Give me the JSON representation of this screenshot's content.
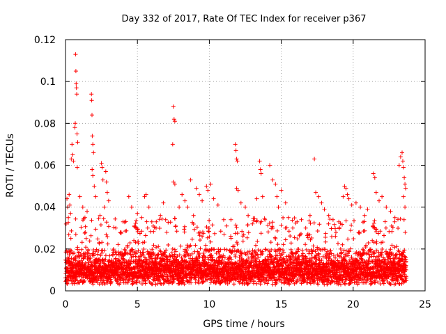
{
  "chart_data": {
    "type": "scatter",
    "title": "Day 332 of 2017, Rate Of TEC Index for receiver p367",
    "xlabel": "GPS time / hours",
    "ylabel": "ROTI / TECUs",
    "xlim": [
      0,
      25
    ],
    "ylim": [
      0,
      0.12
    ],
    "x_ticks": [
      0,
      5,
      10,
      15,
      20,
      25
    ],
    "y_ticks": [
      0,
      0.02,
      0.04,
      0.06,
      0.08,
      0.1,
      0.12
    ],
    "x_tick_labels": [
      "0",
      "5",
      "10",
      "15",
      "20",
      "25"
    ],
    "y_tick_labels": [
      "0",
      "0.02",
      "0.04",
      "0.06",
      "0.08",
      "0.1",
      "0.12"
    ],
    "grid": true,
    "marker": "+",
    "color": "#ff0000",
    "background_band": {
      "x_range": [
        0,
        23.7
      ],
      "floor_range": [
        0.003,
        0.008
      ],
      "typical_range": [
        0.005,
        0.02
      ],
      "note": "dense continuous band of + markers across the full day"
    },
    "points": [
      [
        0.1,
        0.044
      ],
      [
        0.15,
        0.04
      ],
      [
        0.2,
        0.035
      ],
      [
        0.25,
        0.046
      ],
      [
        0.3,
        0.041
      ],
      [
        0.35,
        0.037
      ],
      [
        0.4,
        0.063
      ],
      [
        0.45,
        0.07
      ],
      [
        0.5,
        0.065
      ],
      [
        0.55,
        0.062
      ],
      [
        0.65,
        0.078
      ],
      [
        0.68,
        0.08
      ],
      [
        0.7,
        0.113
      ],
      [
        0.72,
        0.105
      ],
      [
        0.74,
        0.099
      ],
      [
        0.76,
        0.097
      ],
      [
        0.78,
        0.094
      ],
      [
        0.8,
        0.075
      ],
      [
        0.85,
        0.071
      ],
      [
        0.82,
        0.059
      ],
      [
        1.0,
        0.045
      ],
      [
        1.2,
        0.04
      ],
      [
        1.35,
        0.035
      ],
      [
        1.5,
        0.038
      ],
      [
        1.8,
        0.094
      ],
      [
        1.82,
        0.091
      ],
      [
        1.84,
        0.084
      ],
      [
        1.86,
        0.074
      ],
      [
        1.9,
        0.07
      ],
      [
        1.95,
        0.066
      ],
      [
        1.85,
        0.058
      ],
      [
        1.9,
        0.055
      ],
      [
        2.0,
        0.05
      ],
      [
        2.1,
        0.045
      ],
      [
        2.5,
        0.061
      ],
      [
        2.55,
        0.059
      ],
      [
        2.6,
        0.053
      ],
      [
        2.8,
        0.057
      ],
      [
        2.85,
        0.052
      ],
      [
        2.9,
        0.047
      ],
      [
        3.0,
        0.043
      ],
      [
        2.7,
        0.04
      ],
      [
        2.4,
        0.036
      ],
      [
        3.5,
        0.03
      ],
      [
        4.0,
        0.033
      ],
      [
        4.4,
        0.045
      ],
      [
        4.6,
        0.04
      ],
      [
        5.0,
        0.037
      ],
      [
        5.3,
        0.035
      ],
      [
        5.5,
        0.045
      ],
      [
        5.6,
        0.046
      ],
      [
        5.8,
        0.04
      ],
      [
        6.0,
        0.033
      ],
      [
        6.3,
        0.03
      ],
      [
        6.6,
        0.036
      ],
      [
        6.8,
        0.042
      ],
      [
        7.45,
        0.07
      ],
      [
        7.5,
        0.088
      ],
      [
        7.55,
        0.082
      ],
      [
        7.6,
        0.081
      ],
      [
        7.5,
        0.052
      ],
      [
        7.6,
        0.051
      ],
      [
        7.9,
        0.04
      ],
      [
        8.1,
        0.046
      ],
      [
        8.3,
        0.043
      ],
      [
        8.5,
        0.04
      ],
      [
        8.7,
        0.053
      ],
      [
        8.9,
        0.036
      ],
      [
        9.1,
        0.049
      ],
      [
        9.3,
        0.046
      ],
      [
        9.5,
        0.043
      ],
      [
        9.8,
        0.05
      ],
      [
        9.9,
        0.048
      ],
      [
        10.1,
        0.051
      ],
      [
        10.3,
        0.044
      ],
      [
        10.6,
        0.041
      ],
      [
        11.0,
        0.034
      ],
      [
        11.2,
        0.031
      ],
      [
        11.5,
        0.034
      ],
      [
        11.8,
        0.07
      ],
      [
        11.85,
        0.067
      ],
      [
        11.9,
        0.063
      ],
      [
        11.95,
        0.062
      ],
      [
        11.9,
        0.049
      ],
      [
        12.0,
        0.048
      ],
      [
        12.2,
        0.042
      ],
      [
        12.5,
        0.04
      ],
      [
        12.7,
        0.036
      ],
      [
        13.0,
        0.032
      ],
      [
        13.3,
        0.044
      ],
      [
        13.5,
        0.062
      ],
      [
        13.55,
        0.058
      ],
      [
        13.6,
        0.056
      ],
      [
        13.7,
        0.045
      ],
      [
        14.2,
        0.06
      ],
      [
        14.4,
        0.053
      ],
      [
        14.6,
        0.051
      ],
      [
        14.7,
        0.045
      ],
      [
        14.8,
        0.04
      ],
      [
        15.0,
        0.048
      ],
      [
        15.3,
        0.042
      ],
      [
        15.5,
        0.035
      ],
      [
        15.8,
        0.03
      ],
      [
        16.1,
        0.033
      ],
      [
        16.4,
        0.034
      ],
      [
        16.7,
        0.03
      ],
      [
        17.0,
        0.036
      ],
      [
        17.3,
        0.063
      ],
      [
        17.4,
        0.047
      ],
      [
        17.6,
        0.045
      ],
      [
        17.8,
        0.042
      ],
      [
        18.0,
        0.039
      ],
      [
        18.3,
        0.036
      ],
      [
        18.6,
        0.034
      ],
      [
        19.0,
        0.033
      ],
      [
        19.3,
        0.045
      ],
      [
        19.4,
        0.05
      ],
      [
        19.5,
        0.049
      ],
      [
        19.6,
        0.046
      ],
      [
        19.7,
        0.044
      ],
      [
        19.9,
        0.041
      ],
      [
        20.2,
        0.042
      ],
      [
        20.5,
        0.04
      ],
      [
        20.8,
        0.036
      ],
      [
        21.0,
        0.039
      ],
      [
        21.4,
        0.056
      ],
      [
        21.5,
        0.054
      ],
      [
        21.6,
        0.047
      ],
      [
        21.8,
        0.043
      ],
      [
        22.0,
        0.045
      ],
      [
        22.3,
        0.04
      ],
      [
        22.6,
        0.038
      ],
      [
        22.9,
        0.035
      ],
      [
        23.2,
        0.06
      ],
      [
        23.3,
        0.064
      ],
      [
        23.4,
        0.066
      ],
      [
        23.45,
        0.062
      ],
      [
        23.5,
        0.059
      ],
      [
        23.55,
        0.054
      ],
      [
        23.6,
        0.051
      ],
      [
        23.65,
        0.049
      ],
      [
        23.5,
        0.045
      ],
      [
        23.6,
        0.04
      ]
    ]
  }
}
